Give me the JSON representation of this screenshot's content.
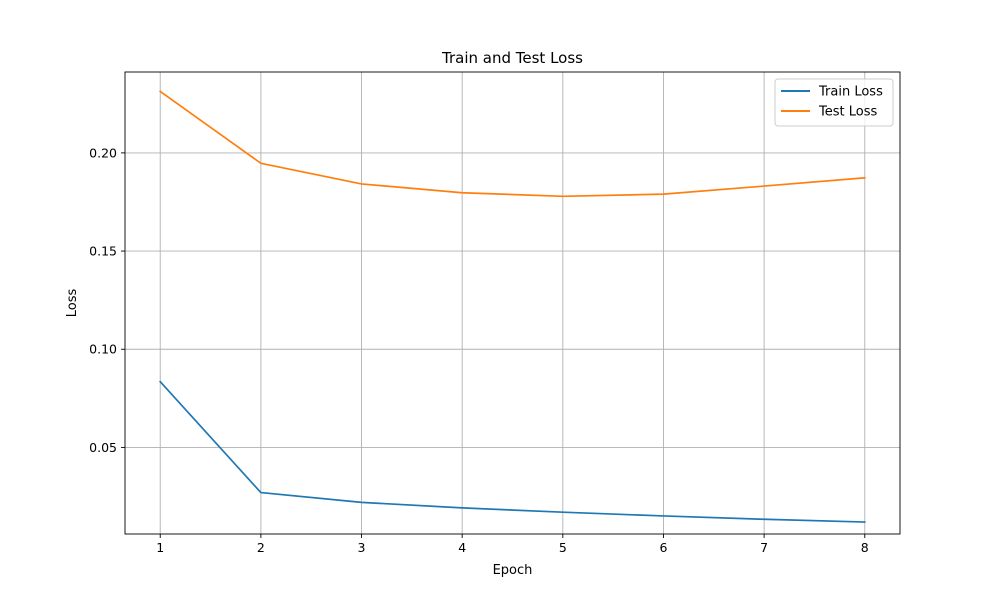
{
  "chart_data": {
    "type": "line",
    "title": "Train and Test Loss",
    "xlabel": "Epoch",
    "ylabel": "Loss",
    "x": [
      1,
      2,
      3,
      4,
      5,
      6,
      7,
      8
    ],
    "xlim": [
      0.65,
      8.35
    ],
    "ylim": [
      0.0059,
      0.2412
    ],
    "xticks": [
      "1",
      "2",
      "3",
      "4",
      "5",
      "6",
      "7",
      "8"
    ],
    "yticks": [
      0.05,
      0.1,
      0.15,
      0.2
    ],
    "ytick_labels": [
      "0.05",
      "0.10",
      "0.15",
      "0.20"
    ],
    "grid": true,
    "legend_position": "top-right",
    "series": [
      {
        "name": "Train Loss",
        "color": "#1f77b4",
        "values": [
          0.0835,
          0.027,
          0.022,
          0.0192,
          0.017,
          0.0151,
          0.0134,
          0.012
        ]
      },
      {
        "name": "Test Loss",
        "color": "#ff7f0e",
        "values": [
          0.2313,
          0.1947,
          0.1842,
          0.1797,
          0.1779,
          0.179,
          0.1831,
          0.1873
        ]
      }
    ]
  }
}
